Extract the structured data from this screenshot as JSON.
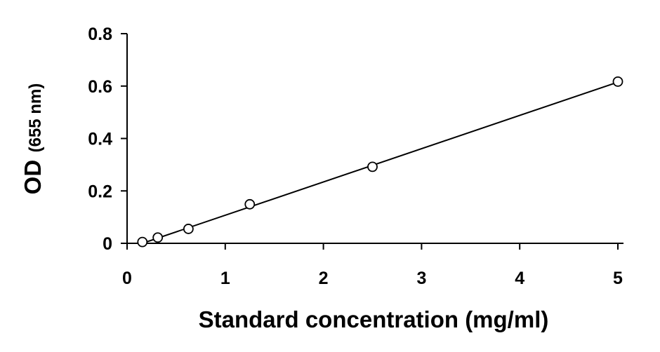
{
  "chart_data": {
    "type": "scatter",
    "title": "",
    "xlabel": "Standard concentration (mg/ml)",
    "ylabel_main": "OD",
    "ylabel_unit": "(655 nm)",
    "xlim": [
      0,
      5
    ],
    "ylim": [
      0,
      0.8
    ],
    "x_ticks": [
      0,
      1,
      2,
      3,
      4,
      5
    ],
    "y_ticks": [
      0,
      0.2,
      0.4,
      0.6,
      0.8
    ],
    "x_tick_labels": [
      "0",
      "1",
      "2",
      "3",
      "4",
      "5"
    ],
    "y_tick_labels": [
      "0",
      "0.2",
      "0.4",
      "0.6",
      "0.8"
    ],
    "grid": false,
    "legend": "none",
    "marker": "open-circle",
    "series": [
      {
        "x": [
          0.156,
          0.3125,
          0.625,
          1.25,
          2.5,
          5
        ],
        "y": [
          0.005,
          0.022,
          0.055,
          0.149,
          0.292,
          0.617
        ]
      }
    ],
    "trendline": {
      "type": "linear",
      "x": [
        0.156,
        5
      ],
      "y": [
        0.0,
        0.615
      ]
    },
    "colors": {
      "axis": "#000000",
      "marker_stroke": "#000000",
      "trendline": "#000000"
    }
  }
}
